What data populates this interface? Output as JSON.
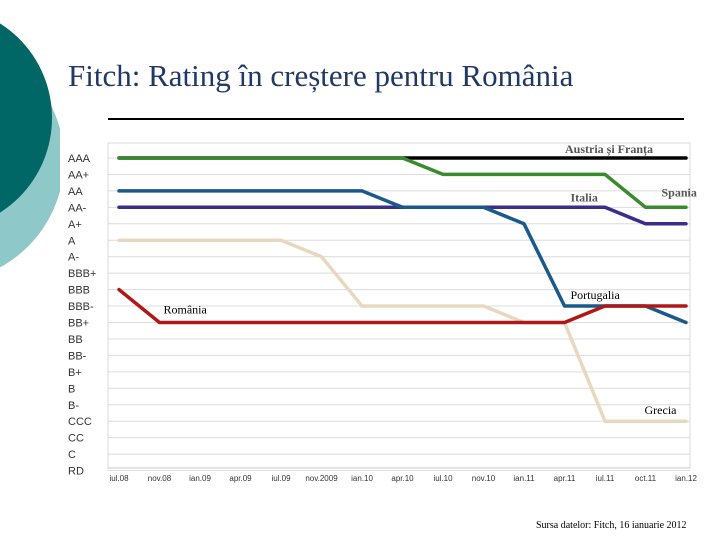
{
  "slide": {
    "title": "Fitch: Rating în creștere pentru România",
    "source": "Sursa datelor: Fitch, 16 ianuarie 2012"
  },
  "colors": {
    "deco_dark": "#006666",
    "deco_light": "#8fc8c8",
    "title": "#1f3864"
  },
  "chart_data": {
    "type": "line",
    "title": "",
    "xlabel": "",
    "ylabel": "",
    "grid": true,
    "legend": "none",
    "categories": [
      "iul.08",
      "nov.08",
      "ian.09",
      "apr.09",
      "iul.09",
      "nov.2009",
      "ian.10",
      "apr.10",
      "iul.10",
      "nov.10",
      "ian.11",
      "apr.11",
      "iul.11",
      "oct.11",
      "ian.12"
    ],
    "y_ticks": [
      "AAA",
      "AA+",
      "AA",
      "AA-",
      "A+",
      "A",
      "A-",
      "BBB+",
      "BBB",
      "BBB-",
      "BB+",
      "BB",
      "BB-",
      "B+",
      "B",
      "B-",
      "CCC",
      "CC",
      "C",
      "RD"
    ],
    "series": [
      {
        "name": "Austria și Franța",
        "color": "#000000",
        "values": [
          "AAA",
          "AAA",
          "AAA",
          "AAA",
          "AAA",
          "AAA",
          "AAA",
          "AAA",
          "AAA",
          "AAA",
          "AAA",
          "AAA",
          "AAA",
          "AAA",
          "AAA"
        ]
      },
      {
        "name": "Spania",
        "color": "#3a8a2e",
        "values": [
          "AAA",
          "AAA",
          "AAA",
          "AAA",
          "AAA",
          "AAA",
          "AAA",
          "AAA",
          "AA+",
          "AA+",
          "AA+",
          "AA+",
          "AA+",
          "AA-",
          "AA-"
        ]
      },
      {
        "name": "Italia",
        "color": "#3b2e8a",
        "values": [
          "AA-",
          "AA-",
          "AA-",
          "AA-",
          "AA-",
          "AA-",
          "AA-",
          "AA-",
          "AA-",
          "AA-",
          "AA-",
          "AA-",
          "AA-",
          "A+",
          "A+"
        ]
      },
      {
        "name": "Portugalia",
        "color": "#1a5a8a",
        "values": [
          "AA",
          "AA",
          "AA",
          "AA",
          "AA",
          "AA",
          "AA",
          "AA-",
          "AA-",
          "AA-",
          "A+",
          "BBB-",
          "BBB-",
          "BBB-",
          "BB+"
        ]
      },
      {
        "name": "Grecia",
        "color": "#e8d8c0",
        "values": [
          "A",
          "A",
          "A",
          "A",
          "A",
          "A-",
          "BBB-",
          "BBB-",
          "BBB-",
          "BBB-",
          "BB+",
          "BB+",
          "CCC",
          "CCC",
          "CCC"
        ]
      },
      {
        "name": "România",
        "color": "#b01818",
        "values": [
          "BBB",
          "BB+",
          "BB+",
          "BB+",
          "BB+",
          "BB+",
          "BB+",
          "BB+",
          "BB+",
          "BB+",
          "BB+",
          "BB+",
          "BBB-",
          "BBB-",
          "BBB-"
        ]
      }
    ],
    "labels": [
      {
        "text": "Austria și Franța",
        "series": "Austria și Franța"
      },
      {
        "text": "Spania",
        "series": "Spania"
      },
      {
        "text": "Italia",
        "series": "Italia"
      },
      {
        "text": "Portugalia",
        "series": "Portugalia"
      },
      {
        "text": "Grecia",
        "series": "Grecia"
      },
      {
        "text": "România",
        "series": "România"
      }
    ]
  }
}
